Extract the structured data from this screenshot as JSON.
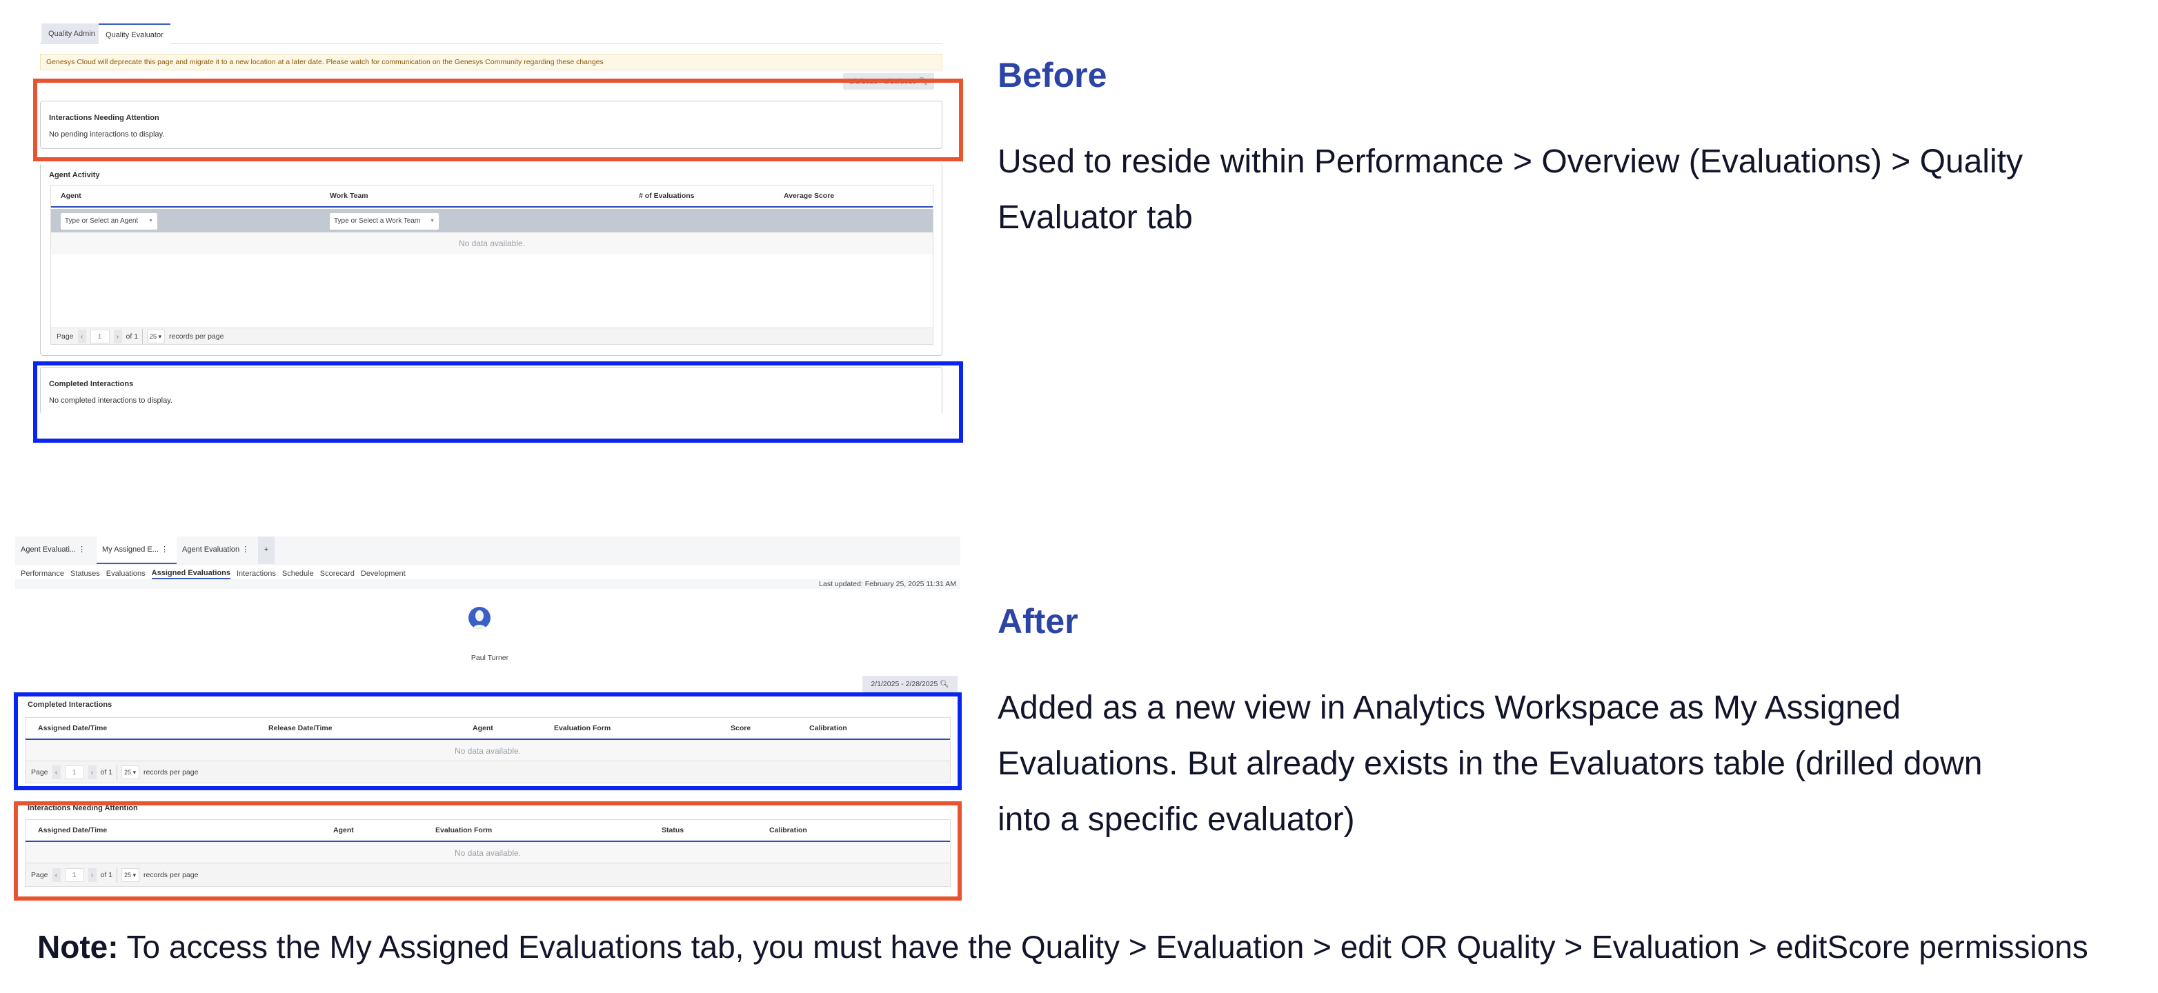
{
  "before": {
    "tabs": [
      "Quality Admin",
      "Quality Evaluator"
    ],
    "active_tab": "Quality Evaluator",
    "banner": "Genesys Cloud will deprecate this page and migrate it to a new location at a later date. Please watch for communication on the Genesys Community regarding these changes",
    "date_range": "2/1/2025 - 2/28/2025",
    "needing_attention": {
      "title": "Interactions Needing Attention",
      "empty": "No pending interactions to display."
    },
    "agent_activity": {
      "title": "Agent Activity",
      "columns": [
        "Agent",
        "Work Team",
        "# of Evaluations",
        "Average Score"
      ],
      "agent_placeholder": "Type or Select an Agent",
      "team_placeholder": "Type or Select a Work Team",
      "empty": "No data available.",
      "pager": {
        "page_label": "Page",
        "page": "1",
        "of": "of 1",
        "per_page": "25",
        "per_page_label": "records per page"
      }
    },
    "completed": {
      "title": "Completed Interactions",
      "empty": "No completed interactions to display."
    }
  },
  "after": {
    "workspace_tabs": [
      "Agent Evaluati...",
      "My Assigned E...",
      "Agent Evaluation"
    ],
    "add_tab": "+",
    "subtabs": [
      "Performance",
      "Statuses",
      "Evaluations",
      "Assigned Evaluations",
      "Interactions",
      "Schedule",
      "Scorecard",
      "Development"
    ],
    "active_subtab": "Assigned Evaluations",
    "last_updated": "Last updated: February 25, 2025 11:31 AM",
    "user_name": "Paul Turner",
    "date_range": "2/1/2025 - 2/28/2025",
    "completed": {
      "title": "Completed Interactions",
      "columns": [
        "Assigned Date/Time",
        "Release Date/Time",
        "Agent",
        "Evaluation Form",
        "Score",
        "Calibration"
      ],
      "empty": "No data available.",
      "pager": {
        "page_label": "Page",
        "page": "1",
        "of": "of 1",
        "per_page": "25",
        "per_page_label": "records per page"
      }
    },
    "needing_attention": {
      "title": "Interactions Needing Attention",
      "columns": [
        "Assigned Date/Time",
        "Agent",
        "Evaluation Form",
        "Status",
        "Calibration"
      ],
      "empty": "No data available.",
      "pager": {
        "page_label": "Page",
        "page": "1",
        "of": "of 1",
        "per_page": "25",
        "per_page_label": "records per page"
      }
    }
  },
  "notes": {
    "before_heading": "Before",
    "before_text": "Used to reside within Performance > Overview (Evaluations) > Quality Evaluator tab",
    "after_heading": "After",
    "after_text": "Added as a new view in Analytics Workspace as My Assigned Evaluations. But already exists in the Evaluators table (drilled down into a specific evaluator)",
    "note_label": "Note:",
    "note_text": " To access the My Assigned Evaluations tab, you must have the Quality > Evaluation > edit OR Quality > Evaluation > editScore permissions"
  },
  "colors": {
    "heading": "#2b44a6",
    "highlight_red": "#e8542f",
    "highlight_blue": "#0a25f2",
    "accent": "#3a5bc7"
  }
}
